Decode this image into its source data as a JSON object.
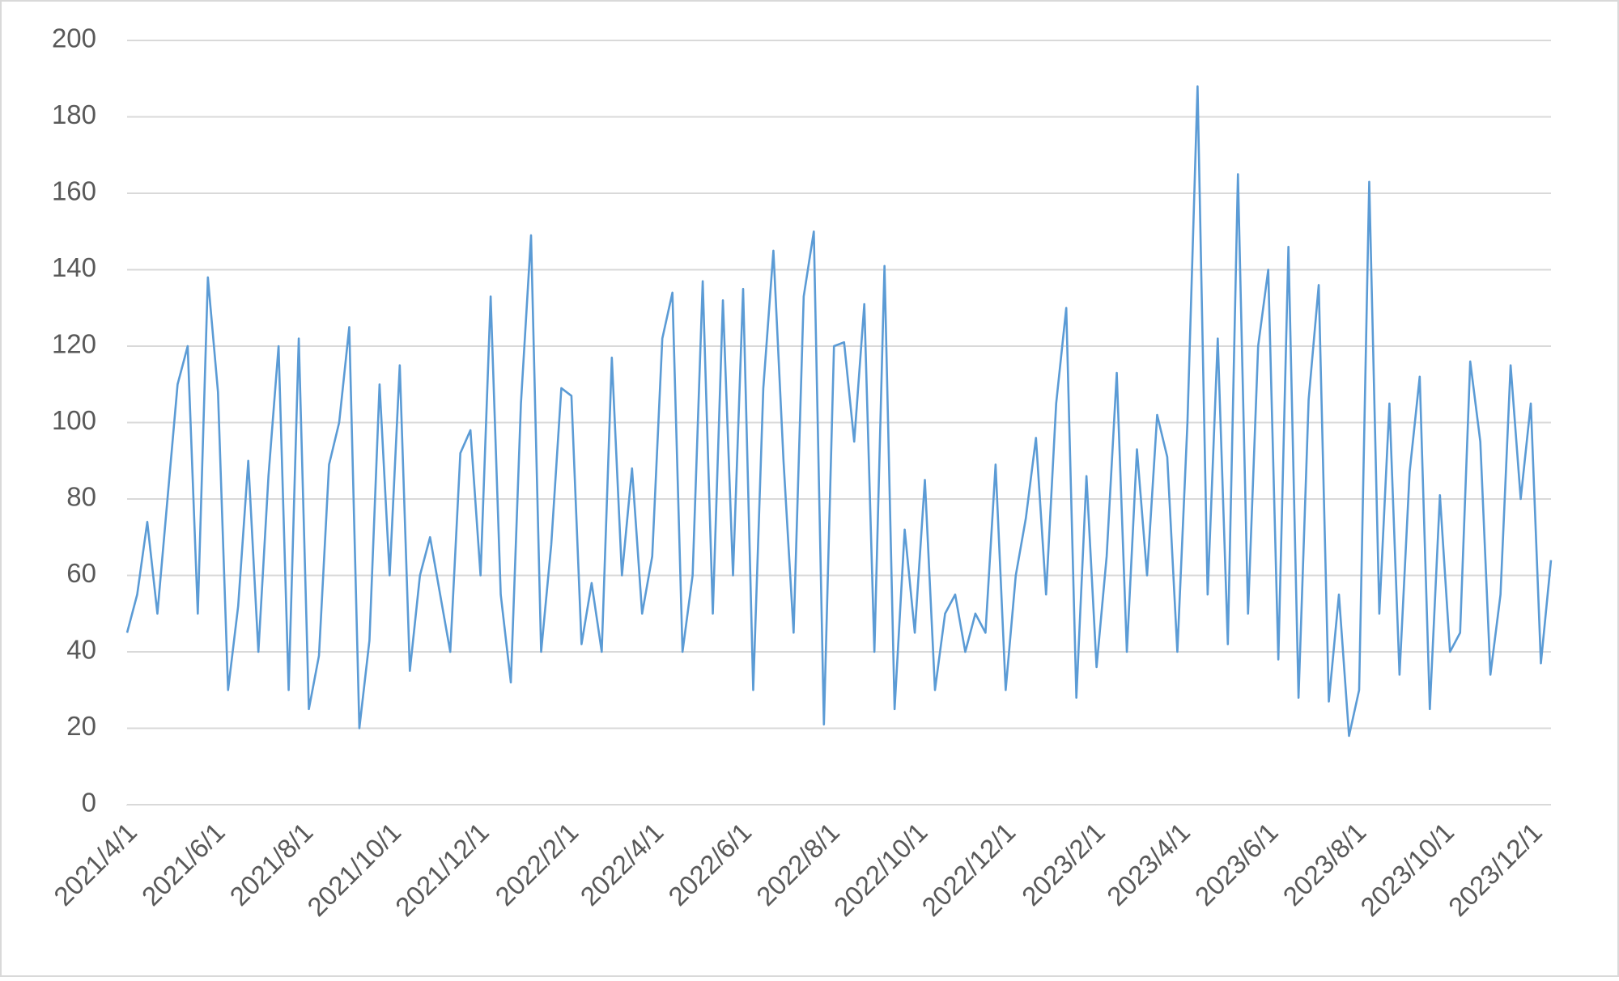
{
  "chart_data": {
    "type": "line",
    "x": [
      "2021-04-01",
      "2021-04-08",
      "2021-04-15",
      "2021-04-22",
      "2021-04-29",
      "2021-05-06",
      "2021-05-13",
      "2021-05-20",
      "2021-05-27",
      "2021-06-03",
      "2021-06-10",
      "2021-06-17",
      "2021-06-24",
      "2021-07-01",
      "2021-07-08",
      "2021-07-15",
      "2021-07-22",
      "2021-07-29",
      "2021-08-05",
      "2021-08-12",
      "2021-08-19",
      "2021-08-26",
      "2021-09-02",
      "2021-09-09",
      "2021-09-16",
      "2021-09-23",
      "2021-09-30",
      "2021-10-07",
      "2021-10-14",
      "2021-10-21",
      "2021-10-28",
      "2021-11-04",
      "2021-11-11",
      "2021-11-18",
      "2021-11-25",
      "2021-12-02",
      "2021-12-09",
      "2021-12-16",
      "2021-12-23",
      "2021-12-30",
      "2022-01-06",
      "2022-01-13",
      "2022-01-20",
      "2022-01-27",
      "2022-02-03",
      "2022-02-10",
      "2022-02-17",
      "2022-02-24",
      "2022-03-03",
      "2022-03-10",
      "2022-03-17",
      "2022-03-24",
      "2022-03-31",
      "2022-04-07",
      "2022-04-14",
      "2022-04-21",
      "2022-04-28",
      "2022-05-05",
      "2022-05-12",
      "2022-05-19",
      "2022-05-26",
      "2022-06-02",
      "2022-06-09",
      "2022-06-16",
      "2022-06-23",
      "2022-06-30",
      "2022-07-07",
      "2022-07-14",
      "2022-07-21",
      "2022-07-28",
      "2022-08-04",
      "2022-08-11",
      "2022-08-18",
      "2022-08-25",
      "2022-09-01",
      "2022-09-08",
      "2022-09-15",
      "2022-09-22",
      "2022-09-29",
      "2022-10-06",
      "2022-10-13",
      "2022-10-20",
      "2022-10-27",
      "2022-11-03",
      "2022-11-10",
      "2022-11-17",
      "2022-11-24",
      "2022-12-01",
      "2022-12-08",
      "2022-12-15",
      "2022-12-22",
      "2022-12-29",
      "2023-01-05",
      "2023-01-12",
      "2023-01-19",
      "2023-01-26",
      "2023-02-02",
      "2023-02-09",
      "2023-02-16",
      "2023-02-23",
      "2023-03-02",
      "2023-03-09",
      "2023-03-16",
      "2023-03-23",
      "2023-03-30",
      "2023-04-06",
      "2023-04-13",
      "2023-04-20",
      "2023-04-27",
      "2023-05-04",
      "2023-05-11",
      "2023-05-18",
      "2023-05-25",
      "2023-06-01",
      "2023-06-08",
      "2023-06-15",
      "2023-06-22",
      "2023-06-29",
      "2023-07-06",
      "2023-07-13",
      "2023-07-20",
      "2023-07-27",
      "2023-08-03",
      "2023-08-10",
      "2023-08-17",
      "2023-08-24",
      "2023-08-31",
      "2023-09-07",
      "2023-09-14",
      "2023-09-21",
      "2023-09-28",
      "2023-10-05",
      "2023-10-12",
      "2023-10-19",
      "2023-10-26",
      "2023-11-02",
      "2023-11-09",
      "2023-11-16",
      "2023-11-23",
      "2023-11-30",
      "2023-12-07",
      "2023-12-14"
    ],
    "series": [
      {
        "color": "#5b9bd5",
        "values": [
          45,
          55,
          74,
          50,
          80,
          110,
          120,
          50,
          138,
          108,
          30,
          52,
          90,
          40,
          86,
          120,
          30,
          122,
          25,
          39,
          89,
          100,
          125,
          20,
          43,
          110,
          60,
          115,
          35,
          60,
          70,
          55,
          40,
          92,
          98,
          60,
          133,
          55,
          32,
          105,
          149,
          40,
          68,
          109,
          107,
          42,
          58,
          40,
          117,
          60,
          88,
          50,
          65,
          122,
          134,
          40,
          60,
          137,
          50,
          132,
          60,
          135,
          30,
          109,
          145,
          90,
          45,
          133,
          150,
          21,
          120,
          121,
          95,
          131,
          40,
          141,
          25,
          72,
          45,
          85,
          30,
          50,
          55,
          40,
          50,
          45,
          89,
          30,
          60,
          75,
          96,
          55,
          105,
          130,
          28,
          86,
          36,
          65,
          113,
          40,
          93,
          60,
          102,
          91,
          40,
          100,
          188,
          55,
          122,
          42,
          165,
          50,
          120,
          140,
          38,
          146,
          28,
          106,
          136,
          27,
          55,
          18,
          30,
          163,
          50,
          105,
          34,
          87,
          112,
          25,
          81,
          40,
          45,
          116,
          95,
          34,
          55,
          115,
          80,
          105,
          37,
          64
        ]
      }
    ],
    "xlim": [
      "2021-04-01",
      "2023-12-14"
    ],
    "xticks": [
      {
        "value": "2021-04-01",
        "label": "2021/4/1"
      },
      {
        "value": "2021-06-01",
        "label": "2021/6/1"
      },
      {
        "value": "2021-08-01",
        "label": "2021/8/1"
      },
      {
        "value": "2021-10-01",
        "label": "2021/10/1"
      },
      {
        "value": "2021-12-01",
        "label": "2021/12/1"
      },
      {
        "value": "2022-02-01",
        "label": "2022/2/1"
      },
      {
        "value": "2022-04-01",
        "label": "2022/4/1"
      },
      {
        "value": "2022-06-01",
        "label": "2022/6/1"
      },
      {
        "value": "2022-08-01",
        "label": "2022/8/1"
      },
      {
        "value": "2022-10-01",
        "label": "2022/10/1"
      },
      {
        "value": "2022-12-01",
        "label": "2022/12/1"
      },
      {
        "value": "2023-02-01",
        "label": "2023/2/1"
      },
      {
        "value": "2023-04-01",
        "label": "2023/4/1"
      },
      {
        "value": "2023-06-01",
        "label": "2023/6/1"
      },
      {
        "value": "2023-08-01",
        "label": "2023/8/1"
      },
      {
        "value": "2023-10-01",
        "label": "2023/10/1"
      },
      {
        "value": "2023-12-01",
        "label": "2023/12/1"
      }
    ],
    "ylim": [
      0,
      200
    ],
    "yticks": [
      0,
      20,
      40,
      60,
      80,
      100,
      120,
      140,
      160,
      180,
      200
    ],
    "grid": true
  }
}
